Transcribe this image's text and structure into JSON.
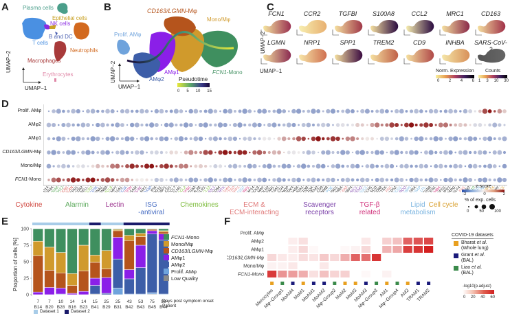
{
  "panels": {
    "A": {
      "label": "A",
      "clusters": [
        {
          "name": "Plasma cells",
          "color": "#4a9e8a"
        },
        {
          "name": "Epithelial cells",
          "color": "#c9a227"
        },
        {
          "name": "NK cells",
          "color": "#8a2be2"
        },
        {
          "name": "B and DC",
          "color": "#4a5fb0"
        },
        {
          "name": "T cells",
          "color": "#4a90e2"
        },
        {
          "name": "Neutrophils",
          "color": "#d2691e"
        },
        {
          "name": "Macrophages",
          "color": "#a83a3a"
        },
        {
          "name": "Erythrocytes",
          "color": "#e088a8"
        }
      ],
      "axis_x": "UMAP−1",
      "axis_y": "UMAP−2"
    },
    "B": {
      "label": "B",
      "clusters": [
        {
          "name": "CD163/LGMN-Mφ",
          "italic_prefix": "CD163/LGMN",
          "suffix": "-Mφ",
          "color": "#b5541c"
        },
        {
          "name": "Mono/Mφ",
          "color": "#d09a2c"
        },
        {
          "name": "Prolif. AMφ",
          "color": "#6fa3dc"
        },
        {
          "name": "AMφ1",
          "color": "#8b1fe8"
        },
        {
          "name": "AMφ2",
          "color": "#3d5ea8"
        },
        {
          "name": "FCN1-Mono",
          "italic_prefix": "FCN1",
          "suffix": "-Mono",
          "color": "#3f8f5f"
        }
      ],
      "axis_x": "UMAP−1",
      "axis_y": "UMAP−2",
      "pseudotime_title": "Pseudotime",
      "pseudotime_ticks": [
        "0",
        "5",
        "10",
        "15"
      ]
    },
    "C": {
      "label": "C",
      "genes_row1": [
        "FCN1",
        "CCR2",
        "TGFBI",
        "S100A8",
        "CCL2",
        "MRC1",
        "CD163"
      ],
      "genes_row2": [
        "LGMN",
        "NRP1",
        "SPP1",
        "TREM2",
        "CD9",
        "INHBA",
        "SARS-CoV-2"
      ],
      "axis_x": "UMAP−1",
      "axis_y": "UMAP−2",
      "expr_legend_title": "Norm. Expression",
      "expr_ticks": [
        "0",
        "2",
        "4",
        "6"
      ],
      "counts_legend_title": "Counts",
      "counts_ticks": [
        "1",
        "3",
        "10",
        "30"
      ]
    },
    "D": {
      "label": "D",
      "rows": [
        "Prolif. AMφ",
        "AMφ2",
        "AMφ1",
        "CD163/LGMN-Mφ",
        "Mono/Mφ",
        "FCN1-Mono"
      ],
      "categories": [
        {
          "name": "Cytokine",
          "color": "#d0473f"
        },
        {
          "name": "Alarmin",
          "color": "#5aa85a"
        },
        {
          "name": "Lectin",
          "color": "#9a2f8c"
        },
        {
          "name": "ISG\n-antiviral",
          "color": "#4a6fc4"
        },
        {
          "name": "Chemokines",
          "color": "#7cbb3a"
        },
        {
          "name": "ECM &\nECM-interacting",
          "color": "#e07a7a"
        },
        {
          "name": "Scavenger\nreceptors",
          "color": "#7a3fa8"
        },
        {
          "name": "TGF-β\nrelated",
          "color": "#d0307a"
        },
        {
          "name": "Lipid\nmetabolism",
          "color": "#7ab4e0"
        },
        {
          "name": "Cell cycle",
          "color": "#d9a030"
        }
      ],
      "zscore_title": "z-score",
      "zscore_ticks": [
        "-2",
        "0",
        "2"
      ],
      "pct_title": "% of exp. cells",
      "pct_ticks": [
        "0",
        "50",
        "100"
      ]
    },
    "E": {
      "label": "E",
      "ylabel": "Proportion of cells [%]",
      "yticks": [
        "0",
        "25",
        "50",
        "75",
        "100"
      ],
      "xlabel_days": "Days post symptom onset",
      "xlabel_patient": "Patient",
      "dataset1": "Dataset 1",
      "dataset2": "Dataset 2"
    },
    "F": {
      "label": "F",
      "legend_title": "COVID-19 datasets",
      "datasets": [
        {
          "name": "Bharat",
          "etal": " et al.",
          "sub": "(Whole lung)",
          "color": "#e8a020"
        },
        {
          "name": "Grant",
          "etal": " et al.",
          "sub": "(BAL)",
          "color": "#1a1a7a"
        },
        {
          "name": "Liao",
          "etal": " et al.",
          "sub": "(BAL)",
          "color": "#3a8a4a"
        }
      ],
      "scale_title": "-log10(p.adjust)",
      "scale_ticks": [
        "0",
        "20",
        "40",
        "60"
      ]
    }
  },
  "chart_data": [
    {
      "type": "bar",
      "title": "E: Cell type proportions per patient",
      "xlabel": "Days post symptom onset / Patient",
      "ylabel": "Proportion of cells [%]",
      "ylim": [
        0,
        100
      ],
      "categories": [
        "B14",
        "B20",
        "B28",
        "B16",
        "B23",
        "B41",
        "B29",
        "B31",
        "B42",
        "B43",
        "B45",
        "B44"
      ],
      "days": [
        "7",
        "7",
        "10",
        "14",
        "14",
        "15",
        "25",
        "25",
        "43",
        "53",
        "75",
        "98"
      ],
      "dataset": [
        1,
        1,
        1,
        1,
        1,
        2,
        1,
        1,
        2,
        2,
        2,
        2
      ],
      "series": [
        {
          "name": "Low Quality",
          "color": "#8a8a8a",
          "values": [
            0,
            0,
            0,
            0,
            0,
            1,
            0,
            0,
            0,
            0,
            1,
            0
          ]
        },
        {
          "name": "Prolif. AMφ",
          "color": "#6fa3dc",
          "values": [
            0,
            0,
            1,
            0,
            0,
            0,
            0,
            10,
            1,
            1,
            2,
            1
          ]
        },
        {
          "name": "AMφ2",
          "color": "#3d5ea8",
          "values": [
            0,
            0,
            0,
            0,
            0,
            13,
            2,
            44,
            23,
            40,
            89,
            82
          ]
        },
        {
          "name": "AMφ1",
          "color": "#8b1fe8",
          "values": [
            4,
            11,
            9,
            2,
            5,
            11,
            24,
            33,
            14,
            34,
            5,
            9
          ]
        },
        {
          "name": "CD163/LGMN-Mφ",
          "color": "#b5541c",
          "values": [
            55,
            26,
            23,
            12,
            31,
            24,
            13,
            10,
            44,
            13,
            2,
            3
          ]
        },
        {
          "name": "Mono/Mφ",
          "color": "#d09a2c",
          "values": [
            22,
            35,
            31,
            18,
            39,
            11,
            28,
            2,
            8,
            5,
            0,
            2
          ]
        },
        {
          "name": "FCN1-Mono",
          "color": "#3f8f5f",
          "values": [
            19,
            28,
            36,
            68,
            25,
            40,
            33,
            1,
            10,
            7,
            1,
            3
          ]
        }
      ]
    },
    {
      "type": "heatmap",
      "title": "F: Enrichment vs. COVID-19 dataset populations",
      "rows": [
        "Prolif. AMφ",
        "AMφ2",
        "AMφ1",
        "CD163/LGMN-Mφ",
        "Mono/Mφ",
        "FCN1-Mono"
      ],
      "columns": [
        "Monocytes",
        "Mφ−Group1",
        "MoAM4",
        "MoM1",
        "MoAM1",
        "MoAM2",
        "Mφ−Group2",
        "MoM2",
        "MoM3",
        "MoAM3",
        "Mφ−Group3",
        "AM1",
        "Mφ−Group4",
        "AM2",
        "TRAM1",
        "TRAM2"
      ],
      "column_dataset": [
        "Bharat",
        "Liao",
        "Grant",
        "Bharat",
        "Grant",
        "Grant",
        "Liao",
        "Bharat",
        "Bharat",
        "Grant",
        "Liao",
        "Bharat",
        "Liao",
        "Bharat",
        "Grant",
        "Grant"
      ],
      "value_label": "-log10(p.adjust)",
      "range": [
        0,
        70
      ],
      "values": [
        [
          0,
          0,
          0,
          0,
          0,
          0,
          0,
          0,
          0,
          0,
          0,
          0,
          0,
          0,
          0,
          0
        ],
        [
          0,
          0,
          3,
          6,
          0,
          0,
          0,
          0,
          0,
          4,
          0,
          10,
          14,
          45,
          50,
          55
        ],
        [
          0,
          0,
          3,
          8,
          1,
          0,
          0,
          1,
          2,
          8,
          0,
          18,
          22,
          58,
          62,
          70
        ],
        [
          8,
          4,
          3,
          7,
          5,
          12,
          8,
          20,
          45,
          40,
          62,
          0,
          0,
          0,
          0,
          0
        ],
        [
          2,
          2,
          4,
          0,
          0,
          4,
          0,
          0,
          0,
          0,
          0,
          0,
          0,
          0,
          0,
          0
        ],
        [
          60,
          28,
          25,
          20,
          6,
          14,
          9,
          10,
          0,
          1,
          0,
          2,
          0,
          0,
          0,
          0
        ]
      ]
    },
    {
      "type": "scatter",
      "title": "D: Dot plot of marker genes (z-score, % expressing cells)",
      "rows": [
        "Prolif. AMφ",
        "AMφ2",
        "AMφ1",
        "CD163/LGMN-Mφ",
        "Mono/Mφ",
        "FCN1-Mono"
      ],
      "genes": [
        {
          "g": "CD14",
          "c": "k"
        },
        {
          "g": "FCGR3A",
          "c": "k"
        },
        {
          "g": "S100A8",
          "c": "Alarmin"
        },
        {
          "g": "S100A12",
          "c": "Alarmin"
        },
        {
          "g": "FCN1",
          "c": "Cytokine"
        },
        {
          "g": "VCAN",
          "c": "Cytokine"
        },
        {
          "g": "FPR1",
          "c": "k"
        },
        {
          "g": "CD52",
          "c": "k"
        },
        {
          "g": "SELL",
          "c": "k"
        },
        {
          "g": "CCR2",
          "c": "Chemokines"
        },
        {
          "g": "CD36",
          "c": "ISG"
        },
        {
          "g": "SERPINA1",
          "c": "k"
        },
        {
          "g": "SERPINB9",
          "c": "k"
        },
        {
          "g": "CXCL8",
          "c": "Chemokines"
        },
        {
          "g": "NAMPT",
          "c": "k"
        },
        {
          "g": "SLC11A1",
          "c": "k"
        },
        {
          "g": "APOBEC3A",
          "c": "ISG"
        },
        {
          "g": "TGFBI",
          "c": "TGF"
        },
        {
          "g": "ITGAM",
          "c": "k"
        },
        {
          "g": "CLEC4E",
          "c": "Lectin"
        },
        {
          "g": "MX1",
          "c": "k"
        },
        {
          "g": "DDX60",
          "c": "ISG"
        },
        {
          "g": "IFI6",
          "c": "k"
        },
        {
          "g": "ISG15",
          "c": "k"
        },
        {
          "g": "GBP1",
          "c": "k"
        },
        {
          "g": "CD1",
          "c": "k"
        },
        {
          "g": "CCL7",
          "c": "k"
        },
        {
          "g": "CALM1",
          "c": "k"
        },
        {
          "g": "CCL2",
          "c": "Chemokines"
        },
        {
          "g": "TGFB1",
          "c": "TGF"
        },
        {
          "g": "CD163",
          "c": "k"
        },
        {
          "g": "OLFML2B",
          "c": "k"
        },
        {
          "g": "CMKLR1",
          "c": "k"
        },
        {
          "g": "CCL13",
          "c": "Chemokines"
        },
        {
          "g": "CD163L1",
          "c": "Scavenger"
        },
        {
          "g": "CD84",
          "c": "k"
        },
        {
          "g": "MERTK",
          "c": "Scavenger"
        },
        {
          "g": "LGMN",
          "c": "ECM"
        },
        {
          "g": "CTSD",
          "c": "ECM"
        },
        {
          "g": "SPP1",
          "c": "ECM"
        },
        {
          "g": "PLA2G7",
          "c": "Lipid"
        },
        {
          "g": "NRP1",
          "c": "TGF"
        },
        {
          "g": "MMP14",
          "c": "k"
        },
        {
          "g": "MARCKS",
          "c": "k"
        },
        {
          "g": "MAF",
          "c": "k"
        },
        {
          "g": "FOLR2",
          "c": "k"
        },
        {
          "g": "STAB1",
          "c": "k"
        },
        {
          "g": "F13A1",
          "c": "k"
        },
        {
          "g": "CD4",
          "c": "k"
        },
        {
          "g": "SELENOP",
          "c": "k"
        },
        {
          "g": "PDK4",
          "c": "k"
        },
        {
          "g": "GAS6",
          "c": "k"
        },
        {
          "g": "SLC40A1",
          "c": "k"
        },
        {
          "g": "C1QB",
          "c": "k"
        },
        {
          "g": "C1QA",
          "c": "k"
        },
        {
          "g": "TREM2",
          "c": "k"
        },
        {
          "g": "CD9",
          "c": "k"
        },
        {
          "g": "GPNMB",
          "c": "k"
        },
        {
          "g": "APOE",
          "c": "Lipid"
        },
        {
          "g": "MSR1",
          "c": "k"
        },
        {
          "g": "INHBA",
          "c": "k"
        },
        {
          "g": "COL6A3",
          "c": "ECM"
        },
        {
          "g": "FABP4",
          "c": "k"
        },
        {
          "g": "MRC1",
          "c": "Scavenger"
        },
        {
          "g": "TREM2",
          "c": "Scavenger"
        },
        {
          "g": "APOC1",
          "c": "Lipid"
        },
        {
          "g": "ACP5",
          "c": "k"
        },
        {
          "g": "SCD",
          "c": "k"
        },
        {
          "g": "CD68",
          "c": "k"
        },
        {
          "g": "CTSK",
          "c": "k"
        },
        {
          "g": "FN1",
          "c": "ECM"
        },
        {
          "g": "CD52",
          "c": "k"
        },
        {
          "g": "ABCG1",
          "c": "Lipid"
        },
        {
          "g": "MARCO",
          "c": "Scavenger"
        },
        {
          "g": "FABP5",
          "c": "Lipid"
        },
        {
          "g": "HLA-DRA",
          "c": "k"
        },
        {
          "g": "ALOX5AP",
          "c": "Lipid"
        },
        {
          "g": "LPL",
          "c": "Lipid"
        },
        {
          "g": "ITGB8",
          "c": "k"
        },
        {
          "g": "CES1",
          "c": "k"
        },
        {
          "g": "INHBA",
          "c": "TGF"
        },
        {
          "g": "GPD1",
          "c": "k"
        },
        {
          "g": "NUPR1",
          "c": "k"
        },
        {
          "g": "PPARG",
          "c": "k"
        },
        {
          "g": "KLF4",
          "c": "k"
        },
        {
          "g": "FN1",
          "c": "ECM"
        },
        {
          "g": "PLIN2",
          "c": "k"
        },
        {
          "g": "S100A10",
          "c": "Alarmin"
        },
        {
          "g": "PLA2G16",
          "c": "Lipid"
        },
        {
          "g": "PLA2G2D",
          "c": "Lipid"
        },
        {
          "g": "MKI67",
          "c": "Cell cycle"
        },
        {
          "g": "TOP2A",
          "c": "Cell cycle"
        },
        {
          "g": "CENPF",
          "c": "k"
        },
        {
          "g": "BIRC5",
          "c": "Cell cycle"
        }
      ],
      "zlim": [
        -2,
        2
      ],
      "size_range_pct": [
        0,
        100
      ]
    }
  ]
}
